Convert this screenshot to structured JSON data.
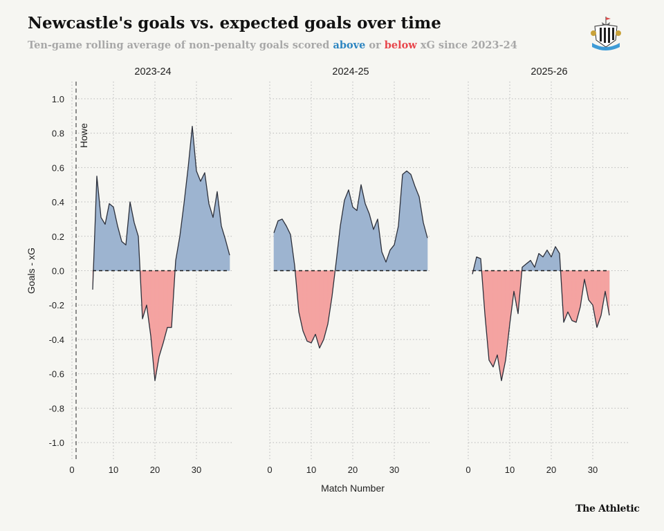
{
  "title": "Newcastle's goals vs. expected goals over time",
  "subtitle": {
    "prefix": "Ten-game rolling average of non-penalty goals scored ",
    "above": "above",
    "middle": " or ",
    "below": "below",
    "suffix": " xG since 2023-24"
  },
  "credit": "The Athletic",
  "colors": {
    "above_fill": "#9db4d0",
    "below_fill": "#f4a3a1",
    "above_text": "#2e86c1",
    "below_text": "#e8464c",
    "line": "#2b2f3a",
    "grid": "#b8b8b8"
  },
  "chart_data": {
    "type": "area",
    "xlabel": "Match Number",
    "ylabel": "Goals - xG",
    "ylim": [
      -1.1,
      1.1
    ],
    "yticks": [
      1.0,
      0.8,
      0.6,
      0.4,
      0.2,
      0.0,
      -0.2,
      -0.4,
      -0.6,
      -0.8,
      -1.0
    ],
    "ytick_labels": [
      "1.0",
      "0.8",
      "0.6",
      "0.4",
      "0.2",
      "0.0",
      "-0.2",
      "-0.4",
      "-0.6",
      "-0.8",
      "-1.0"
    ],
    "xticks": [
      0,
      10,
      20,
      30
    ],
    "xtick_labels": [
      "0",
      "10",
      "20",
      "30"
    ],
    "grid": true,
    "annotation": {
      "text": "Howe",
      "x": 1
    },
    "panels": [
      {
        "name": "2023-24",
        "xlim": [
          0,
          39
        ],
        "points": [
          [
            5,
            -0.11
          ],
          [
            6,
            0.55
          ],
          [
            7,
            0.31
          ],
          [
            8,
            0.27
          ],
          [
            9,
            0.39
          ],
          [
            10,
            0.37
          ],
          [
            11,
            0.26
          ],
          [
            12,
            0.17
          ],
          [
            13,
            0.15
          ],
          [
            14,
            0.4
          ],
          [
            15,
            0.28
          ],
          [
            16,
            0.2
          ],
          [
            17,
            -0.28
          ],
          [
            18,
            -0.2
          ],
          [
            19,
            -0.38
          ],
          [
            20,
            -0.64
          ],
          [
            21,
            -0.5
          ],
          [
            22,
            -0.42
          ],
          [
            23,
            -0.33
          ],
          [
            24,
            -0.33
          ],
          [
            25,
            0.06
          ],
          [
            26,
            0.2
          ],
          [
            27,
            0.39
          ],
          [
            28,
            0.6
          ],
          [
            29,
            0.84
          ],
          [
            30,
            0.58
          ],
          [
            31,
            0.52
          ],
          [
            32,
            0.57
          ],
          [
            33,
            0.39
          ],
          [
            34,
            0.31
          ],
          [
            35,
            0.46
          ],
          [
            36,
            0.26
          ],
          [
            37,
            0.18
          ],
          [
            38,
            0.09
          ]
        ]
      },
      {
        "name": "2024-25",
        "xlim": [
          0,
          39
        ],
        "points": [
          [
            1,
            0.22
          ],
          [
            2,
            0.29
          ],
          [
            3,
            0.3
          ],
          [
            4,
            0.26
          ],
          [
            5,
            0.21
          ],
          [
            6,
            0.03
          ],
          [
            7,
            -0.24
          ],
          [
            8,
            -0.35
          ],
          [
            9,
            -0.41
          ],
          [
            10,
            -0.42
          ],
          [
            11,
            -0.37
          ],
          [
            12,
            -0.45
          ],
          [
            13,
            -0.4
          ],
          [
            14,
            -0.31
          ],
          [
            15,
            -0.15
          ],
          [
            16,
            0.05
          ],
          [
            17,
            0.26
          ],
          [
            18,
            0.41
          ],
          [
            19,
            0.47
          ],
          [
            20,
            0.37
          ],
          [
            21,
            0.35
          ],
          [
            22,
            0.5
          ],
          [
            23,
            0.39
          ],
          [
            24,
            0.33
          ],
          [
            25,
            0.24
          ],
          [
            26,
            0.3
          ],
          [
            27,
            0.11
          ],
          [
            28,
            0.05
          ],
          [
            29,
            0.12
          ],
          [
            30,
            0.15
          ],
          [
            31,
            0.26
          ],
          [
            32,
            0.56
          ],
          [
            33,
            0.58
          ],
          [
            34,
            0.56
          ],
          [
            35,
            0.49
          ],
          [
            36,
            0.43
          ],
          [
            37,
            0.28
          ],
          [
            38,
            0.19
          ]
        ]
      },
      {
        "name": "2025-26",
        "xlim": [
          0,
          39
        ],
        "points": [
          [
            1,
            -0.02
          ],
          [
            2,
            0.08
          ],
          [
            3,
            0.07
          ],
          [
            4,
            -0.25
          ],
          [
            5,
            -0.52
          ],
          [
            6,
            -0.56
          ],
          [
            7,
            -0.49
          ],
          [
            8,
            -0.64
          ],
          [
            9,
            -0.52
          ],
          [
            10,
            -0.31
          ],
          [
            11,
            -0.12
          ],
          [
            12,
            -0.25
          ],
          [
            13,
            0.02
          ],
          [
            14,
            0.04
          ],
          [
            15,
            0.06
          ],
          [
            16,
            0.02
          ],
          [
            17,
            0.1
          ],
          [
            18,
            0.08
          ],
          [
            19,
            0.12
          ],
          [
            20,
            0.08
          ],
          [
            21,
            0.14
          ],
          [
            22,
            0.1
          ],
          [
            23,
            -0.3
          ],
          [
            24,
            -0.24
          ],
          [
            25,
            -0.29
          ],
          [
            26,
            -0.3
          ],
          [
            27,
            -0.21
          ],
          [
            28,
            -0.05
          ],
          [
            29,
            -0.17
          ],
          [
            30,
            -0.2
          ],
          [
            31,
            -0.33
          ],
          [
            32,
            -0.26
          ],
          [
            33,
            -0.12
          ],
          [
            34,
            -0.26
          ]
        ]
      }
    ]
  }
}
